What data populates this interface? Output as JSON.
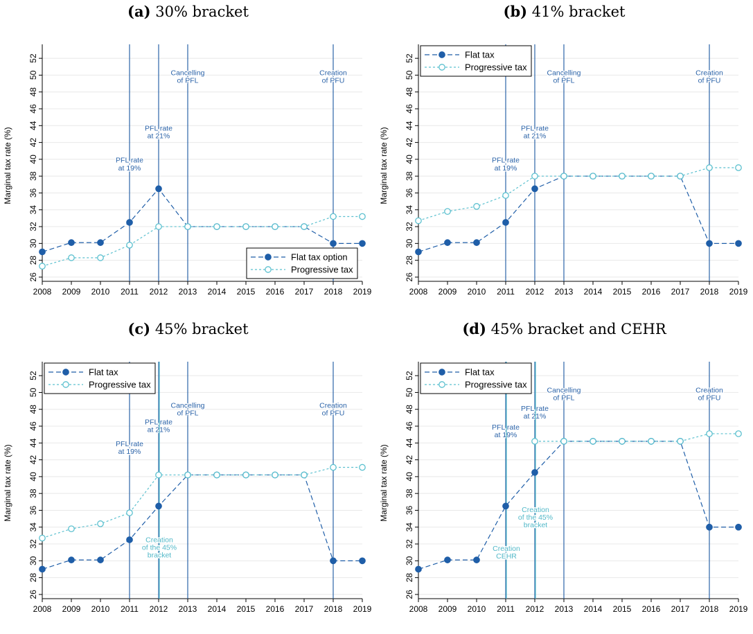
{
  "colors": {
    "flat": "#1f5ea8",
    "progressive": "#5bc0cf",
    "vline": "#2b63a8",
    "annot_alt": "#52b8c8",
    "grid": "#e8e8e8"
  },
  "chart_data": [
    {
      "type": "line",
      "panel_label": "(a)",
      "title": "30% bracket",
      "ylabel": "Marginal tax rate (%)",
      "xlabel": "",
      "ylim": [
        25.5,
        53
      ],
      "y_ticks": [
        26,
        28,
        30,
        32,
        34,
        36,
        38,
        40,
        42,
        44,
        46,
        48,
        50,
        52
      ],
      "x": [
        2008,
        2009,
        2010,
        2011,
        2012,
        2013,
        2014,
        2015,
        2016,
        2017,
        2018,
        2019
      ],
      "series": [
        {
          "name": "Flat tax option",
          "style": "flat",
          "values": [
            29.0,
            30.1,
            30.1,
            32.5,
            36.5,
            32.0,
            32.0,
            32.0,
            32.0,
            32.0,
            30.0,
            30.0
          ]
        },
        {
          "name": "Progressive tax",
          "style": "progressive",
          "values": [
            27.3,
            28.3,
            28.3,
            29.8,
            32.0,
            32.0,
            32.0,
            32.0,
            32.0,
            32.0,
            33.2,
            33.2
          ]
        }
      ],
      "legend_position": "bottom-right",
      "vlines": [
        {
          "x": 2011,
          "label": [
            "PFL rate",
            "at 19%"
          ],
          "label_y": 39.6,
          "color": "vline"
        },
        {
          "x": 2012,
          "label": [
            "PFL rate",
            "at 21%"
          ],
          "label_y": 43.4,
          "color": "vline"
        },
        {
          "x": 2013,
          "label": [
            "Cancelling",
            "of PFL"
          ],
          "label_y": 50.0,
          "color": "vline"
        },
        {
          "x": 2018,
          "label": [
            "Creation",
            "of PFU"
          ],
          "label_y": 50.0,
          "color": "vline"
        }
      ]
    },
    {
      "type": "line",
      "panel_label": "(b)",
      "title": "41% bracket",
      "ylabel": "Marginal tax rate (%)",
      "xlabel": "",
      "ylim": [
        25.5,
        53
      ],
      "y_ticks": [
        26,
        28,
        30,
        32,
        34,
        36,
        38,
        40,
        42,
        44,
        46,
        48,
        50,
        52
      ],
      "x": [
        2008,
        2009,
        2010,
        2011,
        2012,
        2013,
        2014,
        2015,
        2016,
        2017,
        2018,
        2019
      ],
      "series": [
        {
          "name": "Flat tax",
          "style": "flat",
          "values": [
            29.0,
            30.1,
            30.1,
            32.5,
            36.5,
            38.0,
            38.0,
            38.0,
            38.0,
            38.0,
            30.0,
            30.0
          ]
        },
        {
          "name": "Progressive tax",
          "style": "progressive",
          "values": [
            32.7,
            33.8,
            34.4,
            35.7,
            38.0,
            38.0,
            38.0,
            38.0,
            38.0,
            38.0,
            39.0,
            39.0
          ]
        }
      ],
      "legend_position": "top-left",
      "vlines": [
        {
          "x": 2011,
          "label": [
            "PFL rate",
            "at 19%"
          ],
          "label_y": 39.6,
          "color": "vline"
        },
        {
          "x": 2012,
          "label": [
            "PFL rate",
            "at 21%"
          ],
          "label_y": 43.4,
          "color": "vline"
        },
        {
          "x": 2013,
          "label": [
            "Cancelling",
            "of PFL"
          ],
          "label_y": 50.0,
          "color": "vline"
        },
        {
          "x": 2018,
          "label": [
            "Creation",
            "of PFU"
          ],
          "label_y": 50.0,
          "color": "vline"
        }
      ]
    },
    {
      "type": "line",
      "panel_label": "(c)",
      "title": "45% bracket",
      "ylabel": "Marginal tax rate (%)",
      "xlabel": "",
      "ylim": [
        25.5,
        53
      ],
      "y_ticks": [
        26,
        28,
        30,
        32,
        34,
        36,
        38,
        40,
        42,
        44,
        46,
        48,
        50,
        52
      ],
      "x": [
        2008,
        2009,
        2010,
        2011,
        2012,
        2013,
        2014,
        2015,
        2016,
        2017,
        2018,
        2019
      ],
      "series": [
        {
          "name": "Flat tax",
          "style": "flat",
          "values": [
            29.0,
            30.1,
            30.1,
            32.5,
            36.5,
            40.2,
            40.2,
            40.2,
            40.2,
            40.2,
            30.0,
            30.0
          ]
        },
        {
          "name": "Progressive tax",
          "style": "progressive",
          "values": [
            32.7,
            33.8,
            34.4,
            35.7,
            40.2,
            40.2,
            40.2,
            40.2,
            40.2,
            40.2,
            41.1,
            41.1
          ]
        }
      ],
      "legend_position": "top-left",
      "vlines": [
        {
          "x": 2011,
          "label": [
            "PFL rate",
            "at 19%"
          ],
          "label_y": 43.6,
          "color": "vline"
        },
        {
          "x": 2012,
          "label": [
            "PFL rate",
            "at 21%"
          ],
          "label_y": 46.2,
          "color": "vline"
        },
        {
          "x": 2013,
          "label": [
            "Cancelling",
            "of PFL"
          ],
          "label_y": 48.2,
          "color": "vline"
        },
        {
          "x": 2018,
          "label": [
            "Creation",
            "of PFU"
          ],
          "label_y": 48.2,
          "color": "vline"
        },
        {
          "x": 2012,
          "offset": 1,
          "label": [
            "Creation",
            "of the 45%",
            "bracket"
          ],
          "label_y": 32.2,
          "color": "annot_alt"
        }
      ]
    },
    {
      "type": "line",
      "panel_label": "(d)",
      "title": "45% bracket and CEHR",
      "ylabel": "Marginal tax rate (%)",
      "xlabel": "",
      "ylim": [
        25.5,
        53
      ],
      "y_ticks": [
        26,
        28,
        30,
        32,
        34,
        36,
        38,
        40,
        42,
        44,
        46,
        48,
        50,
        52
      ],
      "x": [
        2008,
        2009,
        2010,
        2011,
        2012,
        2013,
        2014,
        2015,
        2016,
        2017,
        2018,
        2019
      ],
      "series": [
        {
          "name": "Flat tax",
          "style": "flat",
          "values": [
            29.0,
            30.1,
            30.1,
            36.5,
            40.5,
            44.2,
            44.2,
            44.2,
            44.2,
            44.2,
            34.0,
            34.0
          ]
        },
        {
          "name": "Progressive tax",
          "style": "progressive",
          "values": [
            null,
            null,
            null,
            null,
            44.2,
            44.2,
            44.2,
            44.2,
            44.2,
            44.2,
            45.1,
            45.1
          ]
        }
      ],
      "legend_position": "top-left",
      "vlines": [
        {
          "x": 2011,
          "label": [
            "PFL rate",
            "at 19%"
          ],
          "label_y": 45.6,
          "color": "vline"
        },
        {
          "x": 2012,
          "label": [
            "PFL rate",
            "at 21%"
          ],
          "label_y": 47.8,
          "color": "vline"
        },
        {
          "x": 2013,
          "label": [
            "Cancelling",
            "of PFL"
          ],
          "label_y": 50.0,
          "color": "vline"
        },
        {
          "x": 2018,
          "label": [
            "Creation",
            "of PFU"
          ],
          "label_y": 50.0,
          "color": "vline"
        },
        {
          "x": 2011,
          "offset": 1,
          "label": [
            "Creation",
            "CEHR"
          ],
          "label_y": 31.2,
          "color": "annot_alt"
        },
        {
          "x": 2012,
          "offset": 1,
          "label": [
            "Creation",
            "of the 45%",
            "bracket"
          ],
          "label_y": 35.8,
          "color": "annot_alt"
        }
      ]
    }
  ]
}
